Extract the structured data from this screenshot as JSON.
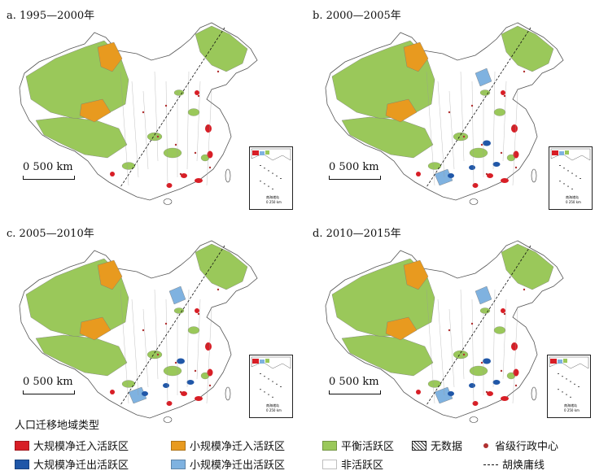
{
  "colors": {
    "large_in": "#d81e26",
    "small_in": "#e89a1f",
    "balanced": "#9ac85a",
    "large_out": "#2057a8",
    "small_out": "#7fb2e0",
    "inactive": "#ffffff",
    "no_data_hatch": "#222222",
    "capital_dot": "#b03030"
  },
  "panels": [
    {
      "title": "a. 1995—2000年",
      "scale": "0    500 km",
      "inset_label": "南海诸岛\n0 250 km",
      "dominant": [
        "balanced",
        "small_in",
        "large_in"
      ]
    },
    {
      "title": "b. 2000—2005年",
      "scale": "0    500 km",
      "inset_label": "南海诸岛\n0 250 km",
      "dominant": [
        "balanced",
        "small_in",
        "large_in",
        "large_out",
        "small_out"
      ]
    },
    {
      "title": "c. 2005—2010年",
      "scale": "0    500 km",
      "inset_label": "南海诸岛\n0 250 km",
      "dominant": [
        "balanced",
        "small_in",
        "large_in",
        "large_out",
        "small_out"
      ]
    },
    {
      "title": "d. 2010—2015年",
      "scale": "0    500 km",
      "inset_label": "南海诸岛\n0 250 km",
      "dominant": [
        "balanced",
        "small_in",
        "large_in",
        "large_out",
        "small_out"
      ]
    }
  ],
  "legend": {
    "title": "人口迁移地域类型",
    "items": [
      {
        "key": "large_in",
        "label": "大规模净迁入活跃区",
        "swatch": "fill"
      },
      {
        "key": "small_in",
        "label": "小规模净迁入活跃区",
        "swatch": "fill"
      },
      {
        "key": "balanced",
        "label": "平衡活跃区",
        "swatch": "fill"
      },
      {
        "key": "no_data",
        "label": "无数据",
        "swatch": "hatch"
      },
      {
        "key": "capital",
        "label": "省级行政中心",
        "swatch": "dot"
      },
      {
        "key": "large_out",
        "label": "大规模净迁出活跃区",
        "swatch": "fill"
      },
      {
        "key": "small_out",
        "label": "小规模净迁出活跃区",
        "swatch": "fill"
      },
      {
        "key": "inactive",
        "label": "非活跃区",
        "swatch": "fill"
      },
      {
        "key": "hu_line",
        "label": "胡焕庸线",
        "swatch": "dash"
      }
    ]
  }
}
